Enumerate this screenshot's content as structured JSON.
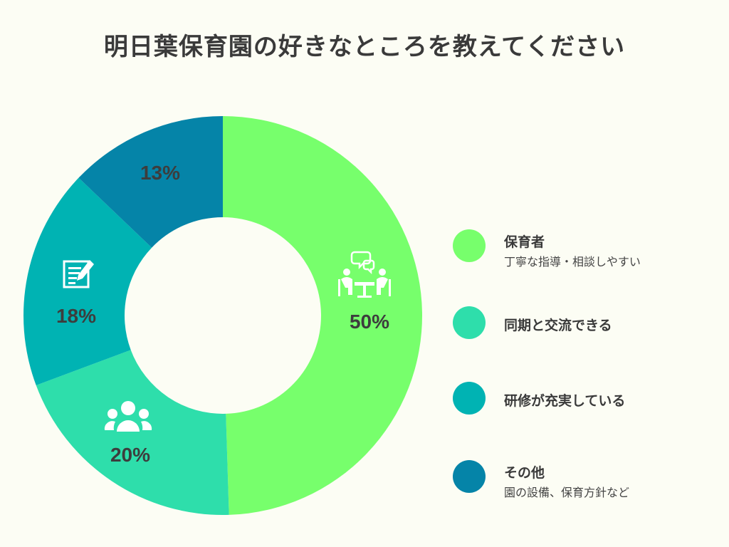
{
  "chart_data": {
    "type": "pie",
    "title": "明日葉保育園の好きなところを教えてください",
    "categories": [
      "保育者",
      "同期と交流できる",
      "研修が充実している",
      "その他"
    ],
    "values": [
      50,
      20,
      18,
      13
    ],
    "value_labels": [
      "50%",
      "20%",
      "18%",
      "13%"
    ],
    "descriptions": [
      "丁寧な指導・相談しやすい",
      "",
      "",
      "園の設備、保育方針など"
    ],
    "colors": [
      "#77ff6c",
      "#2edeab",
      "#00b3b3",
      "#0584a8"
    ],
    "icons": [
      "meeting-icon",
      "group-icon",
      "document-edit-icon",
      ""
    ],
    "donut": true,
    "legend": "right"
  }
}
